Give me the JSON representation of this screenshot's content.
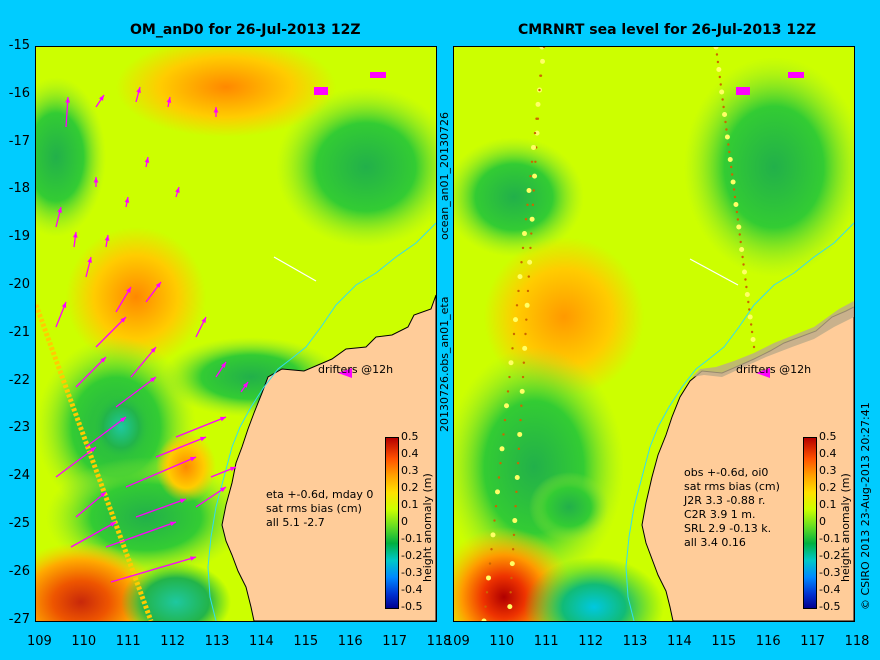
{
  "panels": [
    {
      "title": "OM_anD0 for 26-Jul-2013 12Z",
      "drifters_label": "drifters @12h",
      "stats": [
        "eta +-0.6d, mday 0",
        "sat rms bias (cm)",
        "all 5.1 -2.7"
      ]
    },
    {
      "title": "CMRNRT sea level  for 26-Jul-2013 12Z",
      "drifters_label": "drifters @12h",
      "stats": [
        "obs +-0.6d, oi0",
        "sat rms bias (cm)",
        "J2R   3.3 -0.88 r.",
        "C2R   3.9 1 m.",
        "SRL   2.9 -0.13 k.",
        "all   3.4 0.16"
      ]
    }
  ],
  "x_ticks": [
    "109",
    "110",
    "111",
    "112",
    "113",
    "114",
    "115",
    "116",
    "117",
    "118"
  ],
  "y_ticks": [
    "-15",
    "-16",
    "-17",
    "-18",
    "-19",
    "-20",
    "-21",
    "-22",
    "-23",
    "-24",
    "-25",
    "-26",
    "-27"
  ],
  "colorbar": {
    "label": "height anomaly (m)",
    "ticks": [
      "0.5",
      "0.4",
      "0.3",
      "0.2",
      "0.1",
      "0",
      "-0.1",
      "-0.2",
      "-0.3",
      "-0.4",
      "-0.5"
    ]
  },
  "side_labels": {
    "middle_top": "ocean_an01_20130726",
    "middle_bottom": "20130726.obs_an01_eta",
    "right": "© CSIRO 2013  23-Aug-2013 20:27:41"
  },
  "colors": {
    "background": "#00ccff",
    "land": "#ffcc99",
    "coastline": "#000000",
    "drifter_arrow": "#ff00ff"
  }
}
